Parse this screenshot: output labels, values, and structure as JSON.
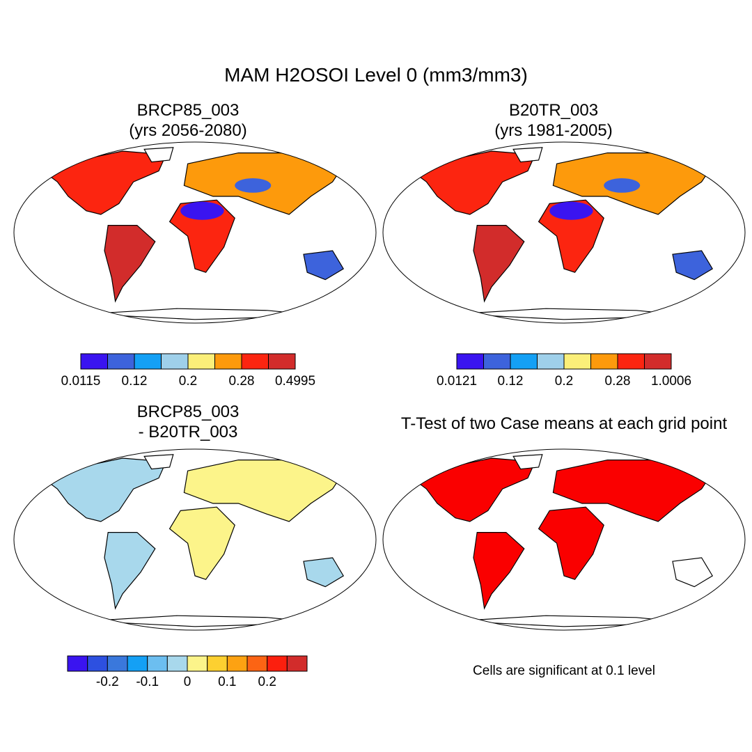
{
  "title": "MAM H2OSOI Level 0 (mm3/mm3)",
  "panels": [
    {
      "id": "brcp85",
      "title_line1": "BRCP85_003",
      "title_line2": "(yrs 2056-2080)",
      "colorbar": {
        "colors": [
          "#3a14f0",
          "#3d63dc",
          "#14a0f5",
          "#9fd0ea",
          "#fbef79",
          "#fd9a0c",
          "#fc2510",
          "#d22c2b"
        ],
        "tick_labels": [
          "0.0115",
          "0.12",
          "0.2",
          "0.28",
          "0.4995"
        ]
      }
    },
    {
      "id": "b20tr",
      "title_line1": "B20TR_003",
      "title_line2": "(yrs 1981-2005)",
      "colorbar": {
        "colors": [
          "#3a14f0",
          "#3d63dc",
          "#14a0f5",
          "#9fd0ea",
          "#fbef79",
          "#fd9a0c",
          "#fc2510",
          "#d22c2b"
        ],
        "tick_labels": [
          "0.0121",
          "0.12",
          "0.2",
          "0.28",
          "1.0006"
        ]
      }
    },
    {
      "id": "difference",
      "title_line1": "BRCP85_003",
      "title_line2": "- B20TR_003",
      "colorbar": {
        "colors": [
          "#3a14f0",
          "#2d50e0",
          "#3a78dc",
          "#14a0f5",
          "#6cbef0",
          "#a8d8ec",
          "#fcf48a",
          "#fdd030",
          "#fda212",
          "#fc6414",
          "#fc1f0e",
          "#d22c2b"
        ],
        "tick_labels": [
          "-0.2",
          "-0.1",
          "0",
          "0.1",
          "0.2"
        ]
      }
    },
    {
      "id": "ttest",
      "title_line1": "T-Test of two Case means at each grid point",
      "note": "Cells are significant at 0.1 level",
      "significant_color": "#fa0000"
    }
  ]
}
